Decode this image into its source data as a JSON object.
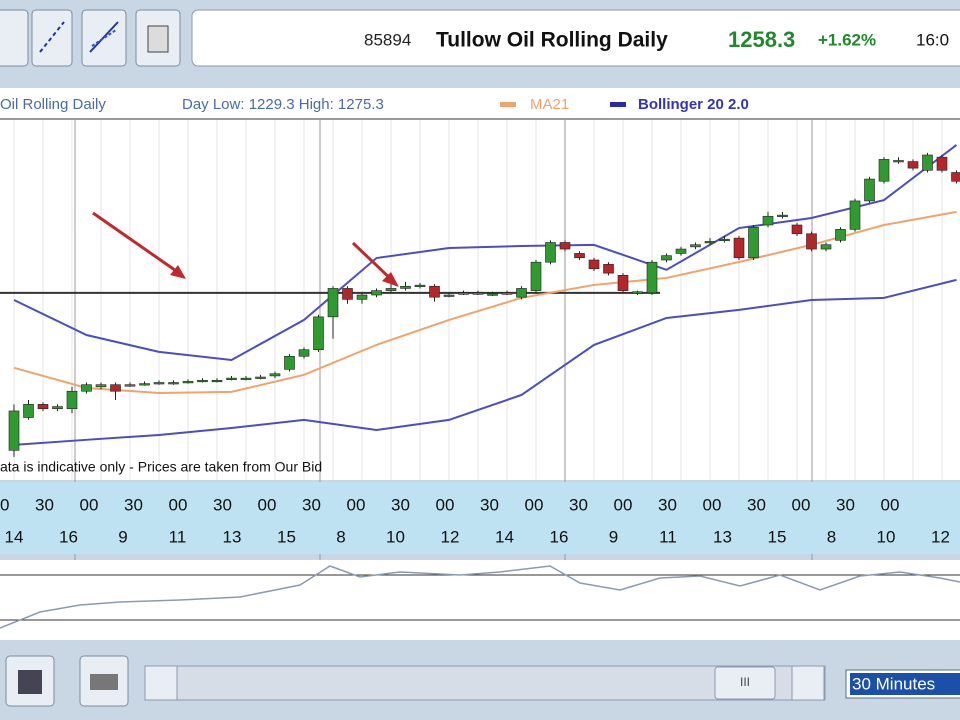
{
  "toolbar": {
    "code": "85894",
    "title": "Tullow Oil Rolling Daily",
    "price": "1258.3",
    "change": "+1.62%",
    "time": "16:0"
  },
  "legend": {
    "instrument": "Oil Rolling Daily",
    "range": "Day Low: 1229.3 High: 1275.3"
  },
  "chart": {
    "type": "candlestick",
    "ylim": [
      1120,
      1280
    ],
    "up_color": "#2f9a2f",
    "down_color": "#b3262a",
    "support": 1201,
    "candles": [
      [
        1129,
        1150,
        1126,
        1147
      ],
      [
        1144,
        1152,
        1143,
        1150
      ],
      [
        1150,
        1151,
        1147,
        1148
      ],
      [
        1148,
        1150,
        1147,
        1149
      ],
      [
        1148,
        1158,
        1146,
        1156
      ],
      [
        1156,
        1160,
        1155,
        1159
      ],
      [
        1158,
        1160,
        1157,
        1159
      ],
      [
        1159,
        1160,
        1152,
        1156
      ],
      [
        1159,
        1160,
        1158,
        1159
      ],
      [
        1159,
        1160.5,
        1158.5,
        1159.5
      ],
      [
        1160,
        1161,
        1159,
        1160
      ],
      [
        1160,
        1161,
        1159,
        1160
      ],
      [
        1160.5,
        1161.5,
        1159.5,
        1160.5
      ],
      [
        1161,
        1162,
        1160,
        1161
      ],
      [
        1161,
        1162,
        1160,
        1161
      ],
      [
        1162,
        1163,
        1161,
        1162
      ],
      [
        1162,
        1163,
        1161,
        1162
      ],
      [
        1162.5,
        1163.5,
        1161.5,
        1162.5
      ],
      [
        1163,
        1165,
        1162,
        1164
      ],
      [
        1166,
        1173,
        1165,
        1172
      ],
      [
        1172,
        1176,
        1171,
        1175
      ],
      [
        1175,
        1191,
        1174,
        1190
      ],
      [
        1190,
        1204,
        1180,
        1203
      ],
      [
        1203,
        1204,
        1196,
        1198
      ],
      [
        1198,
        1201,
        1196,
        1200
      ],
      [
        1200,
        1203,
        1199,
        1202
      ],
      [
        1202,
        1210,
        1201,
        1203
      ],
      [
        1203,
        1206,
        1202,
        1204
      ],
      [
        1204,
        1205.5,
        1203,
        1204.5
      ],
      [
        1204,
        1205,
        1197,
        1199
      ],
      [
        1200,
        1201,
        1199,
        1200
      ],
      [
        1201,
        1202,
        1200,
        1201
      ],
      [
        1201,
        1202,
        1200,
        1201
      ],
      [
        1200.5,
        1201.5,
        1199.5,
        1200.5
      ],
      [
        1201,
        1202,
        1200,
        1201
      ],
      [
        1199,
        1204,
        1198,
        1203
      ],
      [
        1202,
        1216,
        1201,
        1215
      ],
      [
        1215,
        1225,
        1214,
        1224
      ],
      [
        1224,
        1225,
        1220,
        1221
      ],
      [
        1219,
        1220,
        1216,
        1217
      ],
      [
        1216,
        1217,
        1211,
        1212
      ],
      [
        1214,
        1215,
        1209,
        1210
      ],
      [
        1209,
        1210,
        1201,
        1202
      ],
      [
        1201,
        1202,
        1200,
        1201.5
      ],
      [
        1201,
        1216,
        1200,
        1215
      ],
      [
        1216,
        1219,
        1215,
        1218
      ],
      [
        1219,
        1222,
        1218,
        1221
      ],
      [
        1222,
        1224,
        1221,
        1223
      ],
      [
        1224,
        1226,
        1223,
        1224.5
      ],
      [
        1225,
        1227,
        1224,
        1225.5
      ],
      [
        1226,
        1227,
        1216,
        1217
      ],
      [
        1217,
        1232,
        1216,
        1231
      ],
      [
        1232,
        1238,
        1231,
        1236
      ],
      [
        1236,
        1238,
        1235,
        1236.5
      ],
      [
        1232,
        1233,
        1227,
        1228
      ],
      [
        1228,
        1229,
        1220,
        1221
      ],
      [
        1221,
        1224,
        1220,
        1223
      ],
      [
        1225,
        1231,
        1224,
        1230
      ],
      [
        1230,
        1244,
        1229,
        1243
      ],
      [
        1243,
        1254,
        1242,
        1253
      ],
      [
        1252,
        1263,
        1251,
        1262
      ],
      [
        1261,
        1263,
        1260,
        1261.5
      ],
      [
        1261,
        1262,
        1257,
        1258
      ],
      [
        1257,
        1265,
        1256,
        1264
      ],
      [
        1263,
        1264,
        1256,
        1257
      ],
      [
        1256,
        1257,
        1251,
        1252
      ]
    ],
    "indicator_x": [
      0,
      5,
      10,
      15,
      20,
      25,
      30,
      35,
      40,
      45,
      50,
      55,
      60,
      65
    ],
    "ma": {
      "name": "MA21",
      "color": "#f0a36a",
      "values": [
        1166.7,
        1157.5,
        1155.2,
        1155.7,
        1163.5,
        1177.2,
        1188.6,
        1198.7,
        1204.6,
        1207.8,
        1215.1,
        1222.9,
        1232,
        1238
      ]
    },
    "bollinger": {
      "name": "Bollinger 20 2.0",
      "color": "#4c4cc4",
      "upper": [
        1197.7,
        1181.7,
        1174,
        1170.3,
        1188.6,
        1216.9,
        1221.5,
        1222.4,
        1222.9,
        1211.5,
        1230.6,
        1235.2,
        1243.4,
        1268.6
      ],
      "lower": [
        1131.5,
        1133.8,
        1136,
        1139.2,
        1142.9,
        1138.3,
        1142.9,
        1154.3,
        1177.2,
        1189.5,
        1193.2,
        1197.7,
        1198.7,
        1206.9
      ]
    }
  },
  "note": "ata is indicative only - Prices are taken from Our Bid",
  "time_axis": {
    "minutes": [
      "0",
      "30",
      "00",
      "30",
      "00",
      "30",
      "00",
      "30",
      "00",
      "30",
      "00",
      "30",
      "00",
      "30",
      "00",
      "30",
      "00",
      "30",
      "00",
      "30",
      "00"
    ],
    "days": [
      "14",
      "16",
      "9",
      "11",
      "13",
      "15",
      "8",
      "10",
      "12",
      "14",
      "16",
      "9",
      "11",
      "13",
      "15",
      "8",
      "10",
      "12"
    ]
  },
  "footer": {
    "scroll": "III",
    "interval": "30 Minutes"
  }
}
